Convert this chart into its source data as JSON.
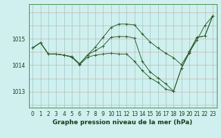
{
  "title": "Graphe pression niveau de la mer (hPa)",
  "bg_color": "#cff0ee",
  "line_color": "#2a5c2a",
  "marker_color": "#2a5c2a",
  "xlim": [
    -0.5,
    23.5
  ],
  "ylim": [
    1012.4,
    1016.3
  ],
  "yticks": [
    1013,
    1014,
    1015
  ],
  "xticks": [
    0,
    1,
    2,
    3,
    4,
    5,
    6,
    7,
    8,
    9,
    10,
    11,
    12,
    13,
    14,
    15,
    16,
    17,
    18,
    19,
    20,
    21,
    22,
    23
  ],
  "tick_fontsize": 5.5,
  "title_fontsize": 6.5,
  "series": [
    [
      1014.65,
      1014.85,
      1014.42,
      1014.42,
      1014.38,
      1014.32,
      1014.05,
      1014.38,
      1014.55,
      1014.72,
      1015.05,
      1015.08,
      1015.08,
      1015.02,
      1014.15,
      1013.75,
      1013.52,
      1013.3,
      1013.02,
      1013.88,
      1014.52,
      1015.05,
      1015.1,
      1015.85
    ],
    [
      1014.65,
      1014.85,
      1014.42,
      1014.42,
      1014.38,
      1014.32,
      1014.05,
      1014.38,
      1014.68,
      1015.05,
      1015.42,
      1015.55,
      1015.55,
      1015.52,
      1015.18,
      1014.88,
      1014.65,
      1014.45,
      1014.28,
      1014.02,
      1014.48,
      1014.95,
      1015.5,
      1015.85
    ],
    [
      1014.65,
      1014.85,
      1014.42,
      1014.42,
      1014.38,
      1014.3,
      1014.02,
      1014.3,
      1014.38,
      1014.42,
      1014.45,
      1014.42,
      1014.42,
      1014.15,
      1013.8,
      1013.52,
      1013.35,
      1013.1,
      1013.02,
      1013.88,
      1014.45,
      1015.05,
      1015.1,
      1015.85
    ]
  ]
}
